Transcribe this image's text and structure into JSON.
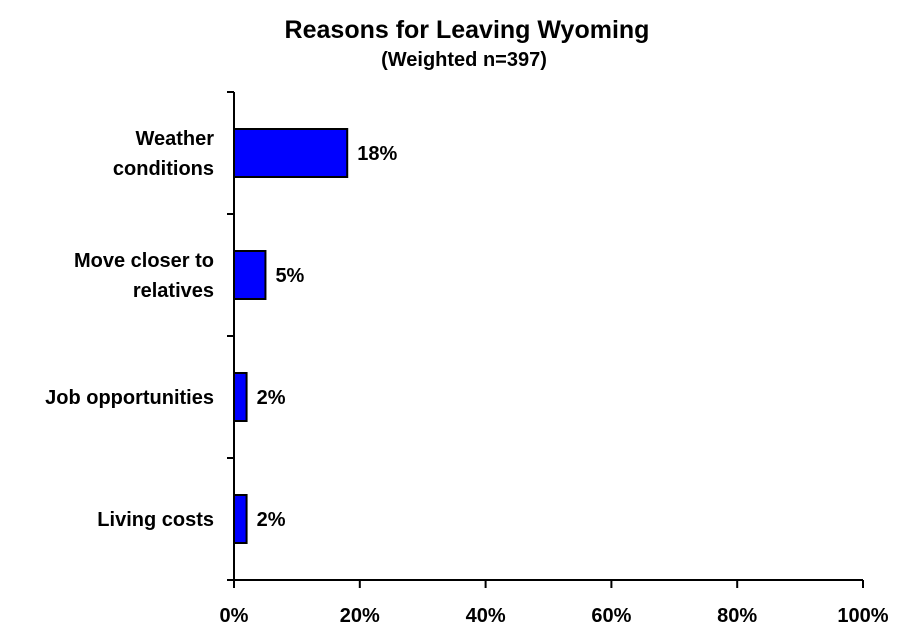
{
  "chart_data": {
    "type": "bar",
    "orientation": "horizontal",
    "title": "Reasons for Leaving Wyoming",
    "subtitle": "(Weighted n=397)",
    "categories": [
      [
        "Weather",
        "conditions"
      ],
      [
        "Move closer to",
        "relatives"
      ],
      [
        "Job opportunities"
      ],
      [
        "Living costs"
      ]
    ],
    "values": [
      18,
      5,
      2,
      2
    ],
    "value_labels": [
      "18%",
      "5%",
      "2%",
      "2%"
    ],
    "xlim": [
      0,
      100
    ],
    "x_ticks": [
      0,
      20,
      40,
      60,
      80,
      100
    ],
    "x_tick_labels": [
      "0%",
      "20%",
      "40%",
      "60%",
      "80%",
      "100%"
    ],
    "grid": false,
    "legend": "none",
    "bar_color": "#0000ff",
    "bar_edge_color": "#000000"
  }
}
